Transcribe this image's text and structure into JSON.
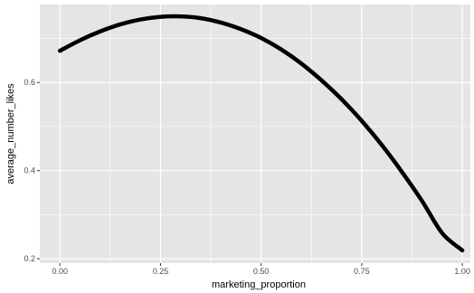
{
  "chart_data": {
    "type": "line",
    "title": "",
    "xlabel": "marketing_proportion",
    "ylabel": "average_number_likes",
    "xlim": [
      -0.05,
      1.02
    ],
    "ylim": [
      0.19,
      0.777
    ],
    "x_ticks": [
      0.0,
      0.25,
      0.5,
      0.75,
      1.0
    ],
    "x_tick_labels": [
      "0.00",
      "0.25",
      "0.50",
      "0.75",
      "1.00"
    ],
    "y_ticks": [
      0.2,
      0.4,
      0.6
    ],
    "y_tick_labels": [
      "0.2",
      "0.4",
      "0.6"
    ],
    "grid": true,
    "legend": "none",
    "colors": {
      "panel": "#e5e5e5",
      "grid": "#ffffff",
      "line": "#000000",
      "tick_text": "#4d4d4d"
    },
    "series": [
      {
        "x": [
          0.0,
          0.05,
          0.1,
          0.15,
          0.2,
          0.25,
          0.3,
          0.35,
          0.4,
          0.45,
          0.5,
          0.55,
          0.6,
          0.65,
          0.7,
          0.75,
          0.8,
          0.85,
          0.9,
          0.95,
          1.0
        ],
        "values": [
          0.672,
          0.696,
          0.716,
          0.732,
          0.743,
          0.749,
          0.75,
          0.746,
          0.736,
          0.721,
          0.701,
          0.675,
          0.643,
          0.605,
          0.562,
          0.513,
          0.458,
          0.397,
          0.331,
          0.258,
          0.219
        ]
      }
    ]
  }
}
